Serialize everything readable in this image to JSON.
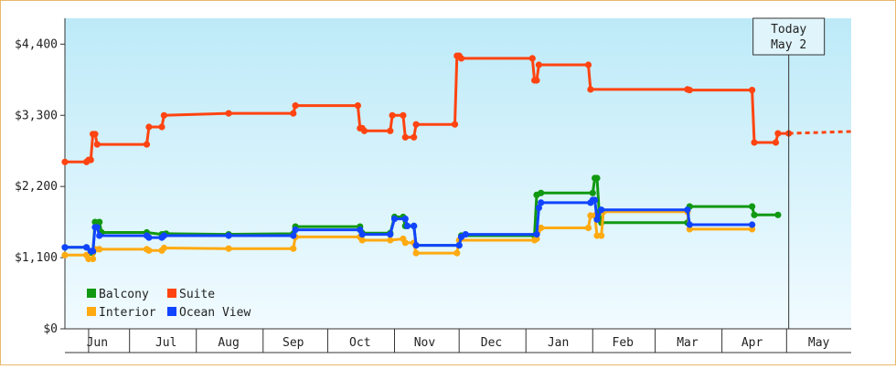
{
  "chart_data": {
    "type": "line",
    "title": "",
    "xlabel": "",
    "ylabel": "",
    "y_tick_labels": [
      "$0",
      "$1,100",
      "$2,200",
      "$3,300",
      "$4,400"
    ],
    "y_tick_values": [
      0,
      1100,
      2200,
      3300,
      4400
    ],
    "ylim": [
      0,
      4800
    ],
    "x_start": "2023-06-01",
    "x_end": "2024-05-31",
    "month_labels": [
      {
        "label": "Jun",
        "date": "2023-06-16"
      },
      {
        "label": "Jul",
        "date": "2023-07-18"
      },
      {
        "label": "Aug",
        "date": "2023-08-16"
      },
      {
        "label": "Sep",
        "date": "2023-09-15"
      },
      {
        "label": "Oct",
        "date": "2023-10-16"
      },
      {
        "label": "Nov",
        "date": "2023-11-15"
      },
      {
        "label": "Dec",
        "date": "2023-12-16"
      },
      {
        "label": "Jan",
        "date": "2024-01-16"
      },
      {
        "label": "Feb",
        "date": "2024-02-15"
      },
      {
        "label": "Mar",
        "date": "2024-03-16"
      },
      {
        "label": "Apr",
        "date": "2024-04-15"
      },
      {
        "label": "May",
        "date": "2024-05-16"
      }
    ],
    "month_boundaries": [
      "2023-06-12",
      "2023-07-01",
      "2023-08-01",
      "2023-09-01",
      "2023-10-01",
      "2023-11-01",
      "2023-12-01",
      "2024-01-01",
      "2024-02-01",
      "2024-03-01",
      "2024-04-01",
      "2024-05-01"
    ],
    "today": {
      "date": "2024-05-02",
      "label_line1": "Today",
      "label_line2": "May 2"
    },
    "grid": false,
    "legend_position": "bottom-left",
    "series": [
      {
        "name": "Balcony",
        "color": "#119911",
        "points": [
          [
            "2023-06-01",
            1260
          ],
          [
            "2023-06-11",
            1260
          ],
          [
            "2023-06-13",
            1180
          ],
          [
            "2023-06-14",
            1180
          ],
          [
            "2023-06-15",
            1650
          ],
          [
            "2023-06-17",
            1650
          ],
          [
            "2023-06-18",
            1490
          ],
          [
            "2023-07-09",
            1490
          ],
          [
            "2023-07-16",
            1460
          ],
          [
            "2023-07-17",
            1460
          ],
          [
            "2023-07-18",
            1470
          ],
          [
            "2023-08-16",
            1460
          ],
          [
            "2023-09-15",
            1470
          ],
          [
            "2023-09-16",
            1580
          ],
          [
            "2023-10-16",
            1580
          ],
          [
            "2023-10-17",
            1480
          ],
          [
            "2023-10-30",
            1480
          ],
          [
            "2023-11-01",
            1730
          ],
          [
            "2023-11-05",
            1730
          ],
          [
            "2023-11-06",
            1590
          ],
          [
            "2023-11-10",
            1590
          ],
          [
            "2023-11-11",
            1290
          ],
          [
            "2023-12-01",
            1290
          ],
          [
            "2023-12-02",
            1440
          ],
          [
            "2024-01-05",
            1440
          ],
          [
            "2024-01-06",
            2070
          ],
          [
            "2024-01-08",
            2100
          ],
          [
            "2024-02-01",
            2100
          ],
          [
            "2024-02-02",
            2330
          ],
          [
            "2024-02-03",
            2330
          ],
          [
            "2024-02-04",
            1810
          ],
          [
            "2024-02-05",
            1640
          ],
          [
            "2024-03-16",
            1640
          ],
          [
            "2024-03-17",
            1890
          ],
          [
            "2024-04-15",
            1890
          ],
          [
            "2024-04-16",
            1760
          ],
          [
            "2024-04-27",
            1760
          ]
        ]
      },
      {
        "name": "Suite",
        "color": "#ff4411",
        "points": [
          [
            "2023-06-01",
            2580
          ],
          [
            "2023-06-11",
            2580
          ],
          [
            "2023-06-12",
            2610
          ],
          [
            "2023-06-13",
            2610
          ],
          [
            "2023-06-14",
            3010
          ],
          [
            "2023-06-15",
            3010
          ],
          [
            "2023-06-16",
            2850
          ],
          [
            "2023-07-09",
            2850
          ],
          [
            "2023-07-10",
            3120
          ],
          [
            "2023-07-16",
            3120
          ],
          [
            "2023-07-17",
            3300
          ],
          [
            "2023-08-16",
            3330
          ],
          [
            "2023-09-15",
            3330
          ],
          [
            "2023-09-16",
            3450
          ],
          [
            "2023-10-15",
            3450
          ],
          [
            "2023-10-16",
            3100
          ],
          [
            "2023-10-17",
            3100
          ],
          [
            "2023-10-18",
            3060
          ],
          [
            "2023-10-30",
            3060
          ],
          [
            "2023-10-31",
            3300
          ],
          [
            "2023-11-05",
            3300
          ],
          [
            "2023-11-06",
            2960
          ],
          [
            "2023-11-10",
            2960
          ],
          [
            "2023-11-11",
            3160
          ],
          [
            "2023-11-29",
            3160
          ],
          [
            "2023-11-30",
            4220
          ],
          [
            "2023-12-01",
            4220
          ],
          [
            "2023-12-02",
            4180
          ],
          [
            "2024-01-04",
            4180
          ],
          [
            "2024-01-05",
            3840
          ],
          [
            "2024-01-06",
            3840
          ],
          [
            "2024-01-07",
            4080
          ],
          [
            "2024-01-30",
            4080
          ],
          [
            "2024-01-31",
            3700
          ],
          [
            "2024-03-16",
            3700
          ],
          [
            "2024-03-17",
            3690
          ],
          [
            "2024-04-15",
            3690
          ],
          [
            "2024-04-16",
            2880
          ],
          [
            "2024-04-26",
            2880
          ],
          [
            "2024-04-27",
            3020
          ],
          [
            "2024-05-02",
            3020
          ]
        ],
        "projection_end": [
          "2024-05-31",
          3050
        ]
      },
      {
        "name": "Interior",
        "color": "#ffaa11",
        "points": [
          [
            "2023-06-01",
            1140
          ],
          [
            "2023-06-11",
            1140
          ],
          [
            "2023-06-12",
            1080
          ],
          [
            "2023-06-14",
            1080
          ],
          [
            "2023-06-15",
            1230
          ],
          [
            "2023-06-17",
            1230
          ],
          [
            "2023-07-09",
            1230
          ],
          [
            "2023-07-10",
            1210
          ],
          [
            "2023-07-16",
            1210
          ],
          [
            "2023-07-17",
            1250
          ],
          [
            "2023-08-16",
            1240
          ],
          [
            "2023-09-15",
            1240
          ],
          [
            "2023-09-16",
            1420
          ],
          [
            "2023-10-16",
            1420
          ],
          [
            "2023-10-17",
            1370
          ],
          [
            "2023-10-30",
            1370
          ],
          [
            "2023-11-05",
            1390
          ],
          [
            "2023-11-06",
            1330
          ],
          [
            "2023-11-10",
            1330
          ],
          [
            "2023-11-11",
            1170
          ],
          [
            "2023-11-30",
            1170
          ],
          [
            "2023-12-01",
            1370
          ],
          [
            "2024-01-05",
            1370
          ],
          [
            "2024-01-06",
            1390
          ],
          [
            "2024-01-08",
            1560
          ],
          [
            "2024-01-30",
            1560
          ],
          [
            "2024-01-31",
            1750
          ],
          [
            "2024-02-02",
            1750
          ],
          [
            "2024-02-03",
            1440
          ],
          [
            "2024-02-05",
            1440
          ],
          [
            "2024-02-06",
            1810
          ],
          [
            "2024-03-16",
            1810
          ],
          [
            "2024-03-17",
            1540
          ],
          [
            "2024-04-15",
            1540
          ]
        ]
      },
      {
        "name": "Ocean View",
        "color": "#1144ff",
        "points": [
          [
            "2023-06-01",
            1260
          ],
          [
            "2023-06-11",
            1260
          ],
          [
            "2023-06-13",
            1200
          ],
          [
            "2023-06-14",
            1200
          ],
          [
            "2023-06-15",
            1570
          ],
          [
            "2023-06-16",
            1570
          ],
          [
            "2023-06-17",
            1440
          ],
          [
            "2023-07-09",
            1440
          ],
          [
            "2023-07-10",
            1410
          ],
          [
            "2023-07-16",
            1410
          ],
          [
            "2023-07-17",
            1440
          ],
          [
            "2023-08-16",
            1440
          ],
          [
            "2023-09-15",
            1440
          ],
          [
            "2023-09-16",
            1530
          ],
          [
            "2023-10-16",
            1530
          ],
          [
            "2023-10-17",
            1460
          ],
          [
            "2023-10-30",
            1460
          ],
          [
            "2023-11-01",
            1700
          ],
          [
            "2023-11-06",
            1700
          ],
          [
            "2023-11-07",
            1590
          ],
          [
            "2023-11-10",
            1590
          ],
          [
            "2023-11-11",
            1290
          ],
          [
            "2023-12-01",
            1290
          ],
          [
            "2023-12-02",
            1420
          ],
          [
            "2023-12-04",
            1460
          ],
          [
            "2024-01-06",
            1460
          ],
          [
            "2024-01-07",
            1870
          ],
          [
            "2024-01-08",
            1950
          ],
          [
            "2024-01-31",
            1950
          ],
          [
            "2024-02-01",
            1990
          ],
          [
            "2024-02-02",
            1990
          ],
          [
            "2024-02-03",
            1690
          ],
          [
            "2024-02-05",
            1840
          ],
          [
            "2024-03-16",
            1840
          ],
          [
            "2024-03-17",
            1610
          ],
          [
            "2024-04-15",
            1610
          ]
        ]
      }
    ]
  }
}
